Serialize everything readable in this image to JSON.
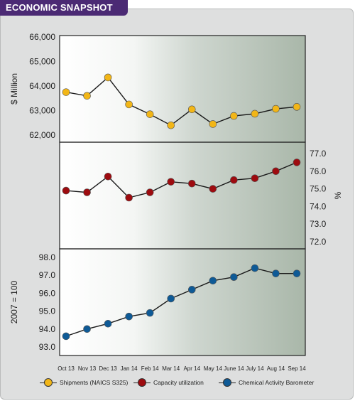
{
  "header": {
    "badge": "ECONOMIC SNAPSHOT"
  },
  "colors": {
    "badge": "#4b2a74",
    "shipments": "#f2b617",
    "capacity": "#9d0b0f",
    "barometer": "#0e5a96",
    "frame": "#dedfdf"
  },
  "chart_data": {
    "type": "line",
    "categories": [
      "Oct 13",
      "Nov 13",
      "Dec 13",
      "Jan 14",
      "Feb 14",
      "Mar 14",
      "Apr 14",
      "May 14",
      "June 14",
      "July 14",
      "Aug 14",
      "Sep 14"
    ],
    "panels": [
      {
        "ylabel": "$ Million",
        "axis_side": "left",
        "ylim": [
          62000,
          66000
        ],
        "yticks": [
          "66,000",
          "65,000",
          "64,000",
          "63,000",
          "62,000"
        ],
        "series": [
          {
            "name": "Shipments (NAICS S325)",
            "values": [
              63750,
              63600,
              64350,
              63250,
              62850,
              62400,
              63050,
              62450,
              62780,
              62870,
              63070,
              63150
            ]
          }
        ]
      },
      {
        "ylabel": "%",
        "axis_side": "right",
        "ylim": [
          72.0,
          77.0
        ],
        "yticks": [
          "77.0",
          "76.0",
          "75.0",
          "74.0",
          "73.0",
          "72.0"
        ],
        "series": [
          {
            "name": "Capacity utilization",
            "values": [
              74.9,
              74.8,
              75.7,
              74.5,
              74.8,
              75.4,
              75.3,
              75.0,
              75.5,
              75.6,
              76.0,
              76.5
            ]
          }
        ]
      },
      {
        "ylabel": "2007 = 100",
        "axis_side": "left",
        "ylim": [
          93.0,
          98.0
        ],
        "yticks": [
          "98.0",
          "97.0",
          "96.0",
          "95.0",
          "94.0",
          "93.0"
        ],
        "series": [
          {
            "name": "Chemical Activity Barometer",
            "values": [
              93.6,
              94.0,
              94.3,
              94.7,
              94.9,
              95.7,
              96.2,
              96.7,
              96.9,
              97.4,
              97.1,
              97.1
            ]
          }
        ]
      }
    ],
    "legend": {
      "position": "bottom",
      "entries": [
        "Shipments (NAICS S325)",
        "Capacity utilization",
        "Chemical Activity Barometer"
      ]
    }
  }
}
